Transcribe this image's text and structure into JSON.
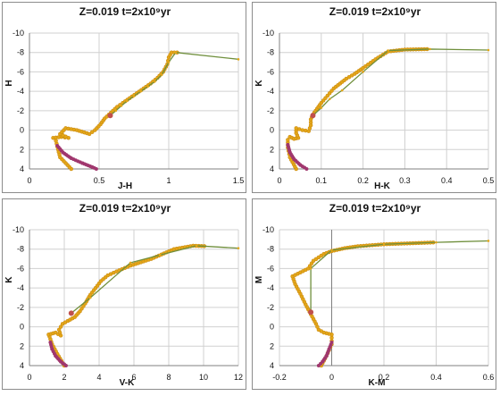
{
  "chart_data": [
    {
      "type": "scatter",
      "title": "Z=0.019  t=2x10⁹yr",
      "xlabel": "J-H",
      "ylabel": "H",
      "xlim": [
        0,
        1.5
      ],
      "ylim": [
        4,
        -10
      ],
      "xticks": [
        "0",
        "0.5",
        "1",
        "1.5"
      ],
      "yticks": [
        "-10",
        "-8",
        "-6",
        "-4",
        "-2",
        "0",
        "2",
        "4"
      ],
      "grid": true,
      "colors": {
        "isochrone": "#e3a619",
        "line": "#6f8f3c",
        "mass_loss": "#a0376e",
        "marker": "#c0504d"
      },
      "series": [
        {
          "values": [
            [
              0.3,
              4
            ],
            [
              0.22,
              2.8
            ],
            [
              0.2,
              1.7
            ],
            [
              0.19,
              1.1
            ],
            [
              0.17,
              0.8
            ],
            [
              0.23,
              0.7
            ],
            [
              0.28,
              0.8
            ],
            [
              0.22,
              0.4
            ],
            [
              0.26,
              -0.2
            ],
            [
              0.34,
              0.0
            ],
            [
              0.43,
              0.4
            ],
            [
              0.47,
              0.0
            ],
            [
              0.51,
              -0.6
            ],
            [
              0.54,
              -1.2
            ],
            [
              0.57,
              -1.6
            ],
            [
              0.6,
              -2.0
            ],
            [
              0.63,
              -2.4
            ],
            [
              0.67,
              -2.8
            ],
            [
              0.72,
              -3.3
            ],
            [
              0.77,
              -3.8
            ],
            [
              0.82,
              -4.3
            ],
            [
              0.87,
              -4.8
            ],
            [
              0.92,
              -5.4
            ],
            [
              0.96,
              -6.0
            ],
            [
              0.99,
              -6.8
            ],
            [
              1.0,
              -7.5
            ],
            [
              1.02,
              -8.0
            ],
            [
              1.08,
              -8.0
            ]
          ]
        },
        {
          "values": [
            [
              0.58,
              -1.5
            ],
            [
              0.62,
              -2.0
            ],
            [
              0.66,
              -2.5
            ],
            [
              0.7,
              -3.0
            ],
            [
              0.75,
              -3.5
            ],
            [
              0.8,
              -4.0
            ],
            [
              0.85,
              -4.5
            ],
            [
              0.9,
              -5.0
            ],
            [
              0.95,
              -5.7
            ],
            [
              1.0,
              -7.0
            ],
            [
              1.05,
              -8.0
            ],
            [
              1.5,
              -7.3
            ]
          ]
        },
        {
          "values": [
            [
              0.2,
              1.6
            ],
            [
              0.24,
              2.3
            ],
            [
              0.3,
              2.9
            ],
            [
              0.38,
              3.4
            ],
            [
              0.45,
              3.8
            ],
            [
              0.48,
              4.0
            ]
          ]
        }
      ]
    },
    {
      "type": "scatter",
      "title": "Z=0.019  t=2x10⁹yr",
      "xlabel": "H-K",
      "ylabel": "K",
      "xlim": [
        0,
        0.5
      ],
      "ylim": [
        4,
        -10
      ],
      "xticks": [
        "0",
        "0.1",
        "0.2",
        "0.3",
        "0.4",
        "0.5"
      ],
      "yticks": [
        "-10",
        "-8",
        "-6",
        "-4",
        "-2",
        "0",
        "2",
        "4"
      ],
      "grid": true,
      "colors": {
        "isochrone": "#e3a619",
        "line": "#6f8f3c",
        "mass_loss": "#a0376e",
        "marker": "#c0504d"
      },
      "series": [
        {
          "values": [
            [
              0.04,
              4
            ],
            [
              0.025,
              2.8
            ],
            [
              0.02,
              1.8
            ],
            [
              0.02,
              1.0
            ],
            [
              0.025,
              0.7
            ],
            [
              0.035,
              0.9
            ],
            [
              0.045,
              0.8
            ],
            [
              0.04,
              0.3
            ],
            [
              0.04,
              -0.2
            ],
            [
              0.055,
              0.0
            ],
            [
              0.07,
              0.1
            ],
            [
              0.075,
              -0.5
            ],
            [
              0.075,
              -1.1
            ],
            [
              0.08,
              -1.6
            ],
            [
              0.09,
              -2.2
            ],
            [
              0.1,
              -2.8
            ],
            [
              0.11,
              -3.3
            ],
            [
              0.12,
              -3.8
            ],
            [
              0.13,
              -4.3
            ],
            [
              0.145,
              -4.8
            ],
            [
              0.16,
              -5.3
            ],
            [
              0.18,
              -5.8
            ],
            [
              0.2,
              -6.4
            ],
            [
              0.23,
              -7.3
            ],
            [
              0.26,
              -8.1
            ],
            [
              0.3,
              -8.3
            ],
            [
              0.36,
              -8.35
            ]
          ]
        },
        {
          "values": [
            [
              0.08,
              -1.5
            ],
            [
              0.1,
              -2.3
            ],
            [
              0.12,
              -3.2
            ],
            [
              0.15,
              -4.1
            ],
            [
              0.2,
              -6.0
            ],
            [
              0.26,
              -8.2
            ],
            [
              0.36,
              -8.35
            ],
            [
              0.5,
              -8.25
            ]
          ]
        },
        {
          "values": [
            [
              0.02,
              1.5
            ],
            [
              0.025,
              2.3
            ],
            [
              0.035,
              3.0
            ],
            [
              0.05,
              3.6
            ],
            [
              0.065,
              4.0
            ]
          ]
        }
      ]
    },
    {
      "type": "scatter",
      "title": "Z=0.019  t=2x10⁹yr",
      "xlabel": "V-K",
      "ylabel": "K",
      "xlim": [
        0,
        12
      ],
      "ylim": [
        4,
        -10
      ],
      "xticks": [
        "0",
        "2",
        "4",
        "6",
        "8",
        "10",
        "12"
      ],
      "yticks": [
        "-10",
        "-8",
        "-6",
        "-4",
        "-2",
        "0",
        "2",
        "4"
      ],
      "grid": true,
      "colors": {
        "isochrone": "#e3a619",
        "line": "#6f8f3c",
        "mass_loss": "#a0376e",
        "marker": "#c0504d"
      },
      "series": [
        {
          "values": [
            [
              2.0,
              4
            ],
            [
              1.6,
              2.8
            ],
            [
              1.3,
              1.8
            ],
            [
              1.15,
              1.0
            ],
            [
              1.1,
              0.8
            ],
            [
              1.5,
              0.6
            ],
            [
              1.8,
              0.9
            ],
            [
              1.7,
              0.3
            ],
            [
              1.9,
              -0.3
            ],
            [
              2.2,
              -0.6
            ],
            [
              2.6,
              -1.0
            ],
            [
              2.9,
              -1.6
            ],
            [
              3.2,
              -2.4
            ],
            [
              3.5,
              -3.3
            ],
            [
              3.8,
              -4.0
            ],
            [
              4.1,
              -4.7
            ],
            [
              4.5,
              -5.3
            ],
            [
              5.0,
              -5.7
            ],
            [
              5.8,
              -6.3
            ],
            [
              7.0,
              -7.0
            ],
            [
              8.3,
              -8.0
            ],
            [
              9.4,
              -8.35
            ],
            [
              10.2,
              -8.3
            ]
          ]
        },
        {
          "values": [
            [
              2.4,
              -1.4
            ],
            [
              3.5,
              -3.0
            ],
            [
              5.8,
              -6.6
            ],
            [
              7.5,
              -7.4
            ],
            [
              9.6,
              -8.35
            ],
            [
              12,
              -8.1
            ]
          ]
        },
        {
          "values": [
            [
              1.2,
              1.6
            ],
            [
              1.3,
              2.3
            ],
            [
              1.5,
              3.0
            ],
            [
              1.8,
              3.6
            ],
            [
              2.1,
              4.0
            ]
          ]
        }
      ]
    },
    {
      "type": "scatter",
      "title": "Z=0.019  t=2x10⁹yr",
      "xlabel": "K-M",
      "ylabel": "M",
      "xlim": [
        -0.2,
        0.6
      ],
      "ylim": [
        4,
        -10
      ],
      "xticks": [
        "-0.2",
        "0",
        "0.2",
        "0.4",
        "0.6"
      ],
      "yticks": [
        "-10",
        "-8",
        "-6",
        "-4",
        "-2",
        "0",
        "2",
        "4"
      ],
      "grid": true,
      "colors": {
        "isochrone": "#e3a619",
        "line": "#6f8f3c",
        "mass_loss": "#a0376e",
        "marker": "#c0504d"
      },
      "series": [
        {
          "values": [
            [
              -0.04,
              4
            ],
            [
              -0.02,
              3.0
            ],
            [
              0.0,
              1.8
            ],
            [
              0.0,
              0.8
            ],
            [
              -0.03,
              0.6
            ],
            [
              -0.05,
              0.3
            ],
            [
              -0.06,
              -0.3
            ],
            [
              -0.08,
              -1.3
            ],
            [
              -0.1,
              -2.3
            ],
            [
              -0.12,
              -3.4
            ],
            [
              -0.14,
              -4.4
            ],
            [
              -0.15,
              -5.2
            ],
            [
              -0.12,
              -5.6
            ],
            [
              -0.09,
              -6.0
            ],
            [
              -0.07,
              -6.8
            ],
            [
              -0.03,
              -7.5
            ],
            [
              0.0,
              -7.8
            ],
            [
              0.05,
              -8.1
            ],
            [
              0.1,
              -8.3
            ],
            [
              0.2,
              -8.5
            ],
            [
              0.4,
              -8.7
            ]
          ]
        },
        {
          "values": [
            [
              -0.08,
              -1.5
            ],
            [
              -0.08,
              -6.0
            ],
            [
              0.0,
              -7.9
            ],
            [
              0.2,
              -8.5
            ],
            [
              0.4,
              -8.7
            ],
            [
              0.6,
              -8.85
            ]
          ]
        },
        {
          "values": [
            [
              0.0,
              1.6
            ],
            [
              -0.01,
              2.3
            ],
            [
              -0.02,
              3.0
            ],
            [
              -0.035,
              3.6
            ],
            [
              -0.05,
              4.0
            ]
          ]
        }
      ]
    }
  ]
}
